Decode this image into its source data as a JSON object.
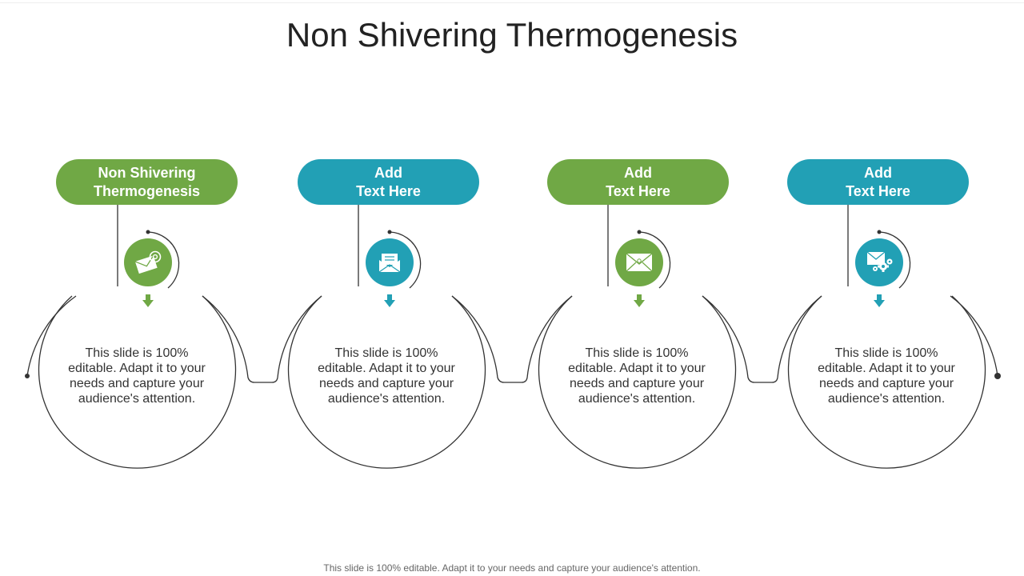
{
  "title": "Non Shivering Thermogenesis",
  "footer": "This slide is 100% editable. Adapt it to your needs and capture your audience's attention.",
  "colors": {
    "green": "#70A845",
    "teal": "#22A0B5",
    "line": "#333333"
  },
  "steps": [
    {
      "heading_line1": "Non Shivering",
      "heading_line2": "Thermogenesis",
      "color": "green",
      "icon": "email-at-icon",
      "body": "This slide is 100% editable. Adapt it to your needs and capture your audience's attention."
    },
    {
      "heading_line1": "Add",
      "heading_line2": "Text Here",
      "color": "teal",
      "icon": "open-envelope-icon",
      "body": "This slide is 100% editable. Adapt it to your needs and capture your audience's attention."
    },
    {
      "heading_line1": "Add",
      "heading_line2": "Text Here",
      "color": "green",
      "icon": "envelope-icon",
      "body": "This slide is 100% editable. Adapt it to your needs and capture your audience's attention."
    },
    {
      "heading_line1": "Add",
      "heading_line2": "Text Here",
      "color": "teal",
      "icon": "envelope-gears-icon",
      "body": "This slide is 100% editable. Adapt it to your needs and capture your audience's attention."
    }
  ]
}
